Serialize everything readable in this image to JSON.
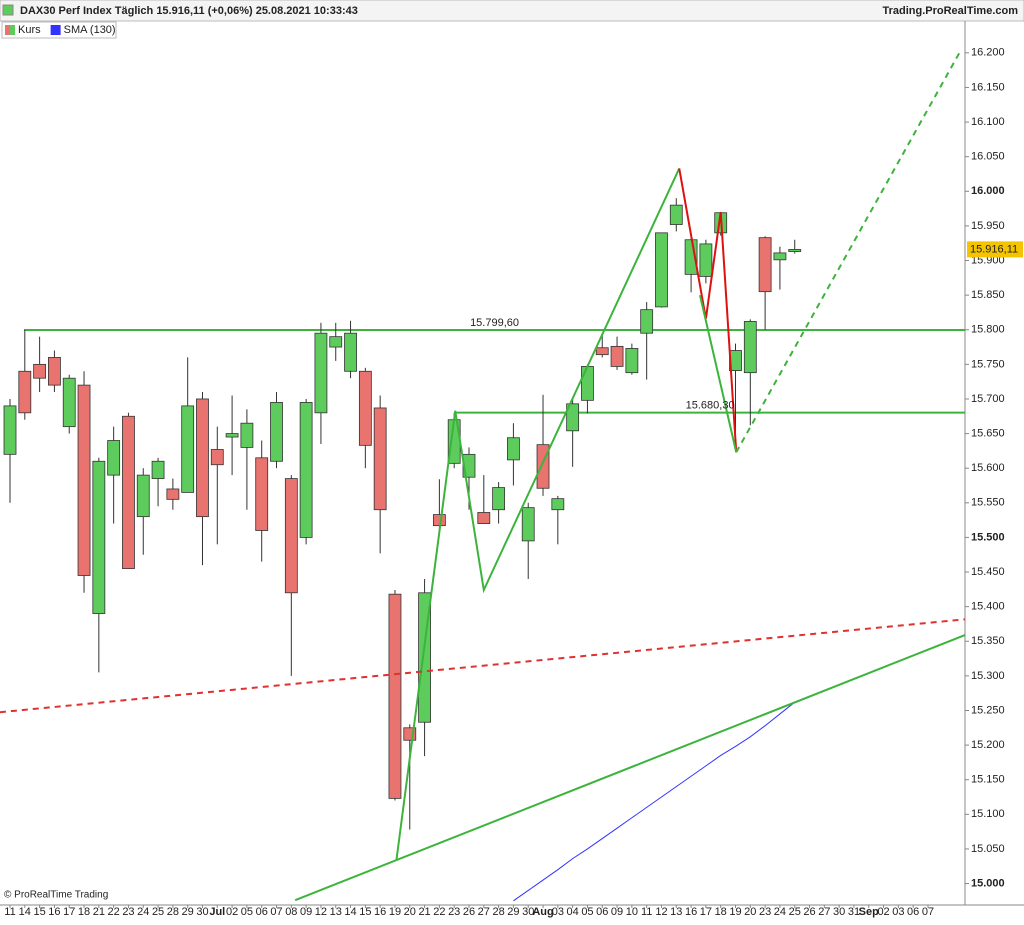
{
  "chart_data": {
    "type": "candlestick",
    "title": "DAX30 Perf Index Täglich 15.916,11 (+0,06%) 25.08.2021 10:33:43",
    "source": "Trading.ProRealTime.com",
    "footer": "© ProRealTime Trading",
    "categories": [
      "11",
      "14",
      "15",
      "16",
      "17",
      "18",
      "21",
      "22",
      "23",
      "24",
      "25",
      "28",
      "29",
      "30",
      "Jul",
      "02",
      "05",
      "06",
      "07",
      "08",
      "09",
      "12",
      "13",
      "14",
      "15",
      "16",
      "19",
      "20",
      "21",
      "22",
      "23",
      "26",
      "27",
      "28",
      "29",
      "30",
      "Aug",
      "03",
      "04",
      "05",
      "06",
      "09",
      "10",
      "11",
      "12",
      "13",
      "16",
      "17",
      "18",
      "19",
      "20",
      "23",
      "24",
      "25",
      "26",
      "27",
      "30",
      "31",
      "Sep",
      "02",
      "03",
      "06",
      "07",
      null,
      null
    ],
    "series": [
      {
        "name": "Kurs",
        "color": "#5dcc5d",
        "down_color": "#e8736f",
        "open": [
          15.62,
          15.74,
          15.75,
          15.76,
          15.66,
          15.72,
          15.39,
          15.59,
          15.675,
          15.53,
          15.585,
          15.57,
          15.565,
          15.7,
          15.627,
          15.645,
          15.63,
          15.615,
          15.61,
          15.585,
          15.5,
          15.68,
          15.775,
          15.74,
          15.74,
          15.687,
          15.418,
          15.225,
          15.233,
          15.533,
          15.607,
          15.587,
          15.536,
          15.54,
          15.612,
          15.495,
          15.634,
          15.54,
          15.654,
          15.698,
          15.774,
          15.776,
          15.738,
          15.795,
          15.833,
          15.952,
          15.88,
          15.877,
          15.94,
          15.741,
          15.738,
          15.933,
          15.901,
          15.913,
          null,
          null,
          null,
          null,
          null,
          null,
          null,
          null,
          null,
          null,
          null
        ],
        "high": [
          15.7,
          15.8,
          15.79,
          15.77,
          15.735,
          15.74,
          15.615,
          15.66,
          15.68,
          15.6,
          15.615,
          15.585,
          15.76,
          15.71,
          15.66,
          15.705,
          15.685,
          15.64,
          15.71,
          15.59,
          15.7,
          15.81,
          15.81,
          15.813,
          15.745,
          15.705,
          15.424,
          15.23,
          15.44,
          15.584,
          15.68,
          15.63,
          15.59,
          15.58,
          15.665,
          15.55,
          15.706,
          15.56,
          15.7,
          15.75,
          15.795,
          15.79,
          15.78,
          15.84,
          15.94,
          15.99,
          15.935,
          15.93,
          15.97,
          15.78,
          15.815,
          15.935,
          15.92,
          15.93,
          null,
          null,
          null,
          null,
          null,
          null,
          null,
          null,
          null,
          null,
          null
        ],
        "low": [
          15.55,
          15.67,
          15.71,
          15.71,
          15.65,
          15.42,
          15.305,
          15.52,
          15.455,
          15.475,
          15.545,
          15.54,
          15.565,
          15.46,
          15.49,
          15.59,
          15.54,
          15.465,
          15.6,
          15.3,
          15.49,
          15.635,
          15.755,
          15.73,
          15.6,
          15.477,
          15.12,
          15.078,
          15.184,
          15.51,
          15.6,
          15.54,
          15.52,
          15.52,
          15.575,
          15.44,
          15.56,
          15.49,
          15.602,
          15.679,
          15.76,
          15.742,
          15.735,
          15.728,
          15.832,
          15.942,
          15.854,
          15.867,
          15.936,
          15.63,
          15.662,
          15.8,
          15.858,
          15.91,
          null,
          null,
          null,
          null,
          null,
          null,
          null,
          null,
          null,
          null,
          null
        ],
        "close": [
          15.69,
          15.68,
          15.73,
          15.72,
          15.73,
          15.445,
          15.61,
          15.64,
          15.455,
          15.59,
          15.61,
          15.555,
          15.69,
          15.53,
          15.605,
          15.65,
          15.665,
          15.51,
          15.695,
          15.42,
          15.695,
          15.795,
          15.79,
          15.795,
          15.633,
          15.54,
          15.123,
          15.207,
          15.42,
          15.517,
          15.67,
          15.62,
          15.52,
          15.572,
          15.644,
          15.543,
          15.571,
          15.556,
          15.693,
          15.747,
          15.764,
          15.747,
          15.773,
          15.829,
          15.94,
          15.98,
          15.93,
          15.924,
          15.969,
          15.77,
          15.812,
          15.855,
          15.911,
          15.916,
          null,
          null,
          null,
          null,
          null,
          null,
          null,
          null,
          null,
          null,
          null
        ]
      },
      {
        "name": "SMA (130)",
        "color": "#3333ff",
        "values": [
          null,
          null,
          null,
          null,
          null,
          null,
          null,
          null,
          null,
          null,
          null,
          null,
          null,
          null,
          null,
          null,
          null,
          null,
          null,
          null,
          null,
          null,
          null,
          null,
          null,
          null,
          null,
          null,
          null,
          null,
          null,
          null,
          null,
          null,
          14.975,
          14.99,
          15.005,
          15.02,
          15.036,
          15.05,
          15.065,
          15.08,
          15.095,
          15.11,
          15.125,
          15.14,
          15.155,
          15.17,
          15.185,
          15.198,
          15.212,
          15.228,
          15.245,
          15.262,
          null,
          null,
          null,
          null,
          null,
          null,
          null,
          null,
          null,
          null,
          null
        ]
      }
    ],
    "ylim": [
      14.969,
      16.246
    ],
    "yticks": [
      {
        "value": 15.0,
        "label": "15.000"
      },
      {
        "value": 15.05,
        "label": "15.050"
      },
      {
        "value": 15.1,
        "label": "15.100"
      },
      {
        "value": 15.15,
        "label": "15.150"
      },
      {
        "value": 15.2,
        "label": "15.200"
      },
      {
        "value": 15.25,
        "label": "15.250"
      },
      {
        "value": 15.3,
        "label": "15.300"
      },
      {
        "value": 15.35,
        "label": "15.350"
      },
      {
        "value": 15.4,
        "label": "15.400"
      },
      {
        "value": 15.45,
        "label": "15.450"
      },
      {
        "value": 15.5,
        "label": "15.500"
      },
      {
        "value": 15.55,
        "label": "15.550"
      },
      {
        "value": 15.6,
        "label": "15.600"
      },
      {
        "value": 15.65,
        "label": "15.650"
      },
      {
        "value": 15.7,
        "label": "15.700"
      },
      {
        "value": 15.75,
        "label": "15.750"
      },
      {
        "value": 15.8,
        "label": "15.800"
      },
      {
        "value": 15.85,
        "label": "15.850"
      },
      {
        "value": 15.9,
        "label": "15.900"
      },
      {
        "value": 15.95,
        "label": "15.950"
      },
      {
        "value": 16.0,
        "label": "16.000"
      },
      {
        "value": 16.05,
        "label": "16.050"
      },
      {
        "value": 16.1,
        "label": "16.100"
      },
      {
        "value": 16.15,
        "label": "16.150"
      },
      {
        "value": 16.2,
        "label": "16.200"
      }
    ],
    "last_price": {
      "value": 15.91611,
      "label": "15.916,11",
      "color": "#f5c400"
    },
    "levels": [
      {
        "value": 15.7996,
        "label": "15.799,60",
        "start": 0.95,
        "color": "#3cb43c"
      },
      {
        "value": 15.6803,
        "label": "15.680,30",
        "start": 30.07,
        "color": "#3cb43c"
      }
    ],
    "lines": [
      {
        "color": "#3cb43c",
        "dashed": false,
        "points": [
          [
            26.1,
            15.034
          ],
          [
            30.07,
            15.683
          ],
          [
            32.0,
            15.424
          ],
          [
            45.2,
            16.033
          ]
        ]
      },
      {
        "color": "#dd1111",
        "dashed": false,
        "points": [
          [
            45.2,
            16.033
          ],
          [
            47.0,
            15.816
          ],
          [
            48.0,
            15.97
          ],
          [
            49.05,
            15.623
          ]
        ]
      },
      {
        "color": "#3cb43c",
        "dashed": false,
        "points": [
          [
            46.6,
            15.85
          ],
          [
            49.05,
            15.623
          ]
        ]
      },
      {
        "color": "#3cb43c",
        "dashed": true,
        "points": [
          [
            49.05,
            15.623
          ],
          [
            64.2,
            16.203
          ]
        ]
      },
      {
        "color": "#e03030",
        "dashed": true,
        "points": [
          [
            -0.68,
            15.2475
          ],
          [
            64.5,
            15.3817
          ]
        ]
      },
      {
        "color": "#3cb43c",
        "dashed": false,
        "points": [
          [
            19.26,
            14.976
          ],
          [
            64.5,
            15.359
          ]
        ]
      }
    ]
  }
}
